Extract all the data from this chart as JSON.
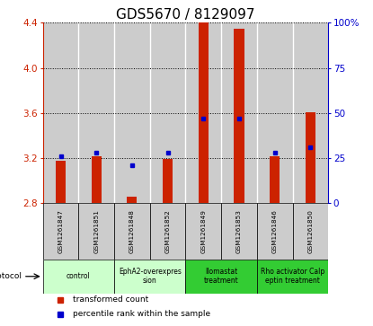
{
  "title": "GDS5670 / 8129097",
  "samples": [
    "GSM1261847",
    "GSM1261851",
    "GSM1261848",
    "GSM1261852",
    "GSM1261849",
    "GSM1261853",
    "GSM1261846",
    "GSM1261850"
  ],
  "transformed_count": [
    3.18,
    3.22,
    2.86,
    3.19,
    4.4,
    4.35,
    3.22,
    3.61
  ],
  "percentile_rank": [
    26,
    28,
    21,
    28,
    47,
    47,
    28,
    31
  ],
  "ylim_left": [
    2.8,
    4.4
  ],
  "ylim_right": [
    0,
    100
  ],
  "yticks_left": [
    2.8,
    3.2,
    3.6,
    4.0,
    4.4
  ],
  "ytick_labels_left": [
    "2.8",
    "3.2",
    "3.6",
    "4.0",
    "4.4"
  ],
  "yticks_right": [
    0,
    25,
    50,
    75,
    100
  ],
  "ytick_labels_right": [
    "0",
    "25",
    "50",
    "75",
    "100%"
  ],
  "bar_color": "#cc2200",
  "dot_color": "#0000cc",
  "protocols": [
    {
      "label": "control",
      "samples": [
        0,
        1
      ],
      "color": "#ccffcc"
    },
    {
      "label": "EphA2-overexpres\nsion",
      "samples": [
        2,
        3
      ],
      "color": "#ccffcc"
    },
    {
      "label": "Ilomastat\ntreatment",
      "samples": [
        4,
        5
      ],
      "color": "#33cc33"
    },
    {
      "label": "Rho activator Calp\neptin treatment",
      "samples": [
        6,
        7
      ],
      "color": "#33cc33"
    }
  ],
  "protocol_label": "protocol",
  "legend_bar_label": "transformed count",
  "legend_dot_label": "percentile rank within the sample",
  "bar_bottom": 2.8,
  "sample_bg_color": "#cccccc",
  "title_fontsize": 11,
  "tick_fontsize": 7.5,
  "label_fontsize": 7
}
